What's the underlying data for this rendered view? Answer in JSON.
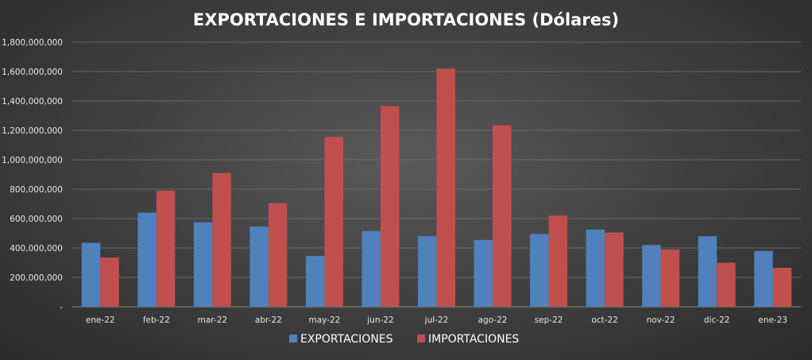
{
  "chart_data": {
    "type": "bar",
    "title": "EXPORTACIONES E IMPORTACIONES (Dólares)",
    "categories": [
      "ene-22",
      "feb-22",
      "mar-22",
      "abr-22",
      "may-22",
      "jun-22",
      "jul-22",
      "ago-22",
      "sep-22",
      "oct-22",
      "nov-22",
      "dic-22",
      "ene-23"
    ],
    "series": [
      {
        "name": "EXPORTACIONES",
        "color": "#4f81bd",
        "values": [
          435000000,
          640000000,
          575000000,
          545000000,
          345000000,
          515000000,
          480000000,
          455000000,
          495000000,
          525000000,
          420000000,
          480000000,
          380000000
        ]
      },
      {
        "name": "IMPORTACIONES",
        "color": "#c0504d",
        "values": [
          335000000,
          790000000,
          910000000,
          705000000,
          1155000000,
          1365000000,
          1620000000,
          1235000000,
          620000000,
          505000000,
          390000000,
          300000000,
          265000000
        ]
      }
    ],
    "yticks": [
      "-",
      "200,000,000",
      "400,000,000",
      "600,000,000",
      "800,000,000",
      "1,000,000,000",
      "1,200,000,000",
      "1,400,000,000",
      "1,600,000,000",
      "1,800,000,000"
    ],
    "ylim": [
      0,
      1800000000
    ],
    "grid": true,
    "legend": "bottom"
  }
}
